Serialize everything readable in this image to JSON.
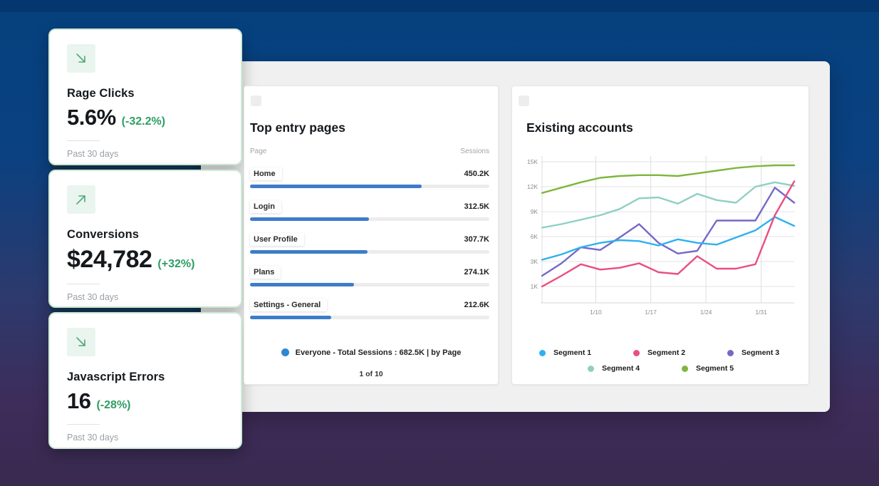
{
  "colors": {
    "background_top": "#05417e",
    "background_bottom": "#392a50",
    "card_border": "#cde9d6",
    "accent_green": "#2e9e63",
    "icon_green": "#57a57c",
    "bar_blue": "#3d7cc9",
    "canvas_gray": "#f0f0f0",
    "shadow_navy": "#16395c"
  },
  "metric_cards": [
    {
      "title": "Rage Clicks",
      "value": "5.6%",
      "delta": "(-32.2%)",
      "period": "Past 30 days",
      "trend": "down",
      "icon": "arrow-down-right-icon"
    },
    {
      "title": "Conversions",
      "value": "$24,782",
      "delta": "(+32%)",
      "period": "Past 30 days",
      "trend": "up",
      "icon": "arrow-up-right-icon"
    },
    {
      "title": "Javascript Errors",
      "value": "16",
      "delta": "(-28%)",
      "period": "Past 30 days",
      "trend": "down",
      "icon": "arrow-down-right-icon"
    }
  ],
  "top_entry_pages": {
    "title": "Top entry pages",
    "columns": {
      "page": "Page",
      "sessions": "Sessions"
    },
    "rows": [
      {
        "label": "Home",
        "sessions": "450.2K",
        "value": 450200
      },
      {
        "label": "Login",
        "sessions": "312.5K",
        "value": 312500
      },
      {
        "label": "User Profile",
        "sessions": "307.7K",
        "value": 307700
      },
      {
        "label": "Plans",
        "sessions": "274.1K",
        "value": 274100
      },
      {
        "label": "Settings - General",
        "sessions": "212.6K",
        "value": 212600
      }
    ],
    "bar_scale": 628000,
    "footer": {
      "legend": "Everyone -  Total Sessions : 682.5K | by Page",
      "pagination": "1 of 10",
      "dot_color": "#2f86d3"
    }
  },
  "existing_accounts": {
    "title": "Existing accounts"
  },
  "chart_data": [
    {
      "type": "bar",
      "title": "Top entry pages",
      "orientation": "horizontal",
      "categories": [
        "Home",
        "Login",
        "User Profile",
        "Plans",
        "Settings - General"
      ],
      "values": [
        450200,
        312500,
        307700,
        274100,
        212600
      ],
      "value_labels": [
        "450.2K",
        "312.5K",
        "307.7K",
        "274.1K",
        "212.6K"
      ],
      "xlabel": "Page",
      "ylabel": "Sessions",
      "total": "682.5K"
    },
    {
      "type": "line",
      "title": "Existing accounts",
      "x_ticks": [
        "1/10",
        "1/17",
        "1/24",
        "1/31"
      ],
      "y_ticks": [
        "15K",
        "12K",
        "9K",
        "6K",
        "3K",
        "1K"
      ],
      "ylim": [
        1000,
        15000
      ],
      "grid": true,
      "legend_position": "bottom",
      "unit": "accounts (K)",
      "series": [
        {
          "name": "Segment 1",
          "color": "#2fb1ef",
          "values": [
            4.0,
            4.6,
            5.4,
            5.9,
            6.2,
            6.1,
            5.6,
            6.3,
            5.9,
            5.7,
            6.5,
            7.3,
            8.8,
            7.8
          ]
        },
        {
          "name": "Segment 2",
          "color": "#e94f7e",
          "values": [
            1.0,
            2.2,
            3.5,
            2.9,
            3.1,
            3.6,
            2.6,
            2.4,
            4.4,
            3.0,
            3.0,
            3.5,
            9.0,
            12.8
          ]
        },
        {
          "name": "Segment 3",
          "color": "#7668c8",
          "values": [
            2.2,
            3.6,
            5.4,
            5.1,
            6.5,
            8.0,
            5.9,
            4.7,
            5.0,
            8.4,
            8.4,
            8.4,
            12.1,
            10.4
          ]
        },
        {
          "name": "Segment 4",
          "color": "#8fd0c2",
          "values": [
            7.6,
            8.0,
            8.5,
            9.0,
            9.7,
            10.9,
            11.0,
            10.3,
            11.4,
            10.7,
            10.4,
            12.2,
            12.7,
            12.3
          ]
        },
        {
          "name": "Segment 5",
          "color": "#7eb63e",
          "values": [
            11.5,
            12.1,
            12.7,
            13.2,
            13.4,
            13.5,
            13.5,
            13.4,
            13.7,
            14.0,
            14.3,
            14.5,
            14.6,
            14.6
          ]
        }
      ]
    }
  ]
}
